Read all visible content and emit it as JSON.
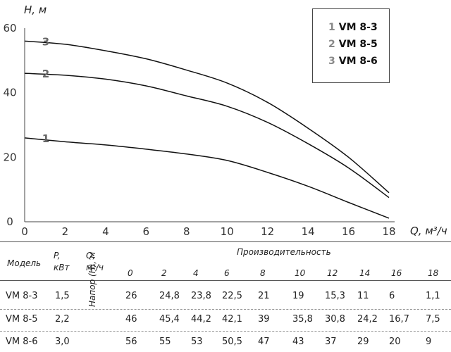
{
  "chart_data": {
    "type": "line",
    "ylabel": "H, м",
    "xlabel": "Q, м³/ч",
    "xlim": [
      0,
      18
    ],
    "ylim": [
      0,
      60
    ],
    "xticks": [
      "0",
      "2",
      "4",
      "6",
      "8",
      "10",
      "12",
      "14",
      "16",
      "18"
    ],
    "yticks": [
      "0",
      "20",
      "40",
      "60"
    ],
    "grid": false,
    "legend_position": "top-right",
    "x": [
      0,
      2,
      4,
      6,
      8,
      10,
      12,
      14,
      16,
      18
    ],
    "series": [
      {
        "name": "VM 8-3",
        "number": "1",
        "values": [
          26,
          24.8,
          23.8,
          22.5,
          21,
          19,
          15.3,
          11,
          6,
          1.1
        ]
      },
      {
        "name": "VM 8-5",
        "number": "2",
        "values": [
          46,
          45.4,
          44.2,
          42.1,
          39,
          35.8,
          30.8,
          24.2,
          16.7,
          7.5
        ]
      },
      {
        "name": "VM 8-6",
        "number": "3",
        "values": [
          56,
          55,
          53,
          50.5,
          47,
          43,
          37,
          29,
          20,
          9
        ]
      }
    ]
  },
  "legend": {
    "items": [
      {
        "num": "1",
        "name": "VM 8-3"
      },
      {
        "num": "2",
        "name": "VM 8-5"
      },
      {
        "num": "3",
        "name": "VM 8-6"
      }
    ]
  },
  "table": {
    "col_model": "Модель",
    "col_power_1": "P,",
    "col_power_2": "кВт",
    "col_q_1": "Q,",
    "col_q_2": "м³/ч",
    "header_group": "Производительность",
    "flow_values": [
      "0",
      "2",
      "4",
      "6",
      "8",
      "10",
      "12",
      "14",
      "16",
      "18"
    ],
    "head_label": "Напор (H), м",
    "rows": [
      {
        "model": "VM 8-3",
        "power": "1,5",
        "values": [
          "26",
          "24,8",
          "23,8",
          "22,5",
          "21",
          "19",
          "15,3",
          "11",
          "6",
          "1,1"
        ]
      },
      {
        "model": "VM 8-5",
        "power": "2,2",
        "values": [
          "46",
          "45,4",
          "44,2",
          "42,1",
          "39",
          "35,8",
          "30,8",
          "24,2",
          "16,7",
          "7,5"
        ]
      },
      {
        "model": "VM 8-6",
        "power": "3,0",
        "values": [
          "56",
          "55",
          "53",
          "50,5",
          "47",
          "43",
          "37",
          "29",
          "20",
          "9"
        ]
      }
    ]
  }
}
